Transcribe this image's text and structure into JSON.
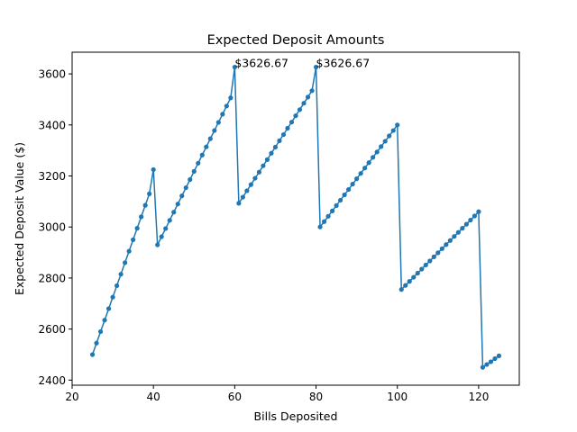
{
  "chart_data": {
    "type": "line",
    "title": "Expected Deposit Amounts",
    "xlabel": "Bills Deposited",
    "ylabel": "Expected Deposit Value ($)",
    "xlim": [
      20,
      130
    ],
    "ylim": [
      2380,
      3685
    ],
    "xticks": [
      20,
      40,
      60,
      80,
      100,
      120
    ],
    "yticks": [
      2400,
      2600,
      2800,
      3000,
      3200,
      3400,
      3600
    ],
    "grid": false,
    "legend": "none",
    "line_color": "#1f77b4",
    "annotations": [
      {
        "x": 60,
        "y": 3626.67,
        "text": "$3626.67"
      },
      {
        "x": 80,
        "y": 3626.67,
        "text": "$3626.67"
      }
    ],
    "series": [
      {
        "x": [
          25,
          26,
          27,
          28,
          29,
          30,
          31,
          32,
          33,
          34,
          35,
          36,
          37,
          38,
          39,
          40,
          41,
          42,
          43,
          44,
          45,
          46,
          47,
          48,
          49,
          50,
          51,
          52,
          53,
          54,
          55,
          56,
          57,
          58,
          59,
          60,
          61,
          62,
          63,
          64,
          65,
          66,
          67,
          68,
          69,
          70,
          71,
          72,
          73,
          74,
          75,
          76,
          77,
          78,
          79,
          80,
          81,
          82,
          83,
          84,
          85,
          86,
          87,
          88,
          89,
          90,
          91,
          92,
          93,
          94,
          95,
          96,
          97,
          98,
          99,
          100,
          101,
          102,
          103,
          104,
          105,
          106,
          107,
          108,
          109,
          110,
          111,
          112,
          113,
          114,
          115,
          116,
          117,
          118,
          119,
          120,
          121,
          122,
          123,
          124,
          125
        ],
        "y": [
          2500,
          2545,
          2590,
          2635,
          2680,
          2725,
          2770,
          2815,
          2860,
          2905,
          2950,
          2995,
          3040,
          3085,
          3130,
          3225,
          2930,
          2962,
          2994,
          3026,
          3058,
          3090,
          3122,
          3154,
          3186,
          3218,
          3250,
          3282,
          3314,
          3346,
          3378,
          3410,
          3442,
          3474,
          3506,
          3626.67,
          3093,
          3117,
          3142,
          3166,
          3191,
          3215,
          3240,
          3264,
          3289,
          3313,
          3338,
          3362,
          3387,
          3411,
          3436,
          3460,
          3485,
          3509,
          3534,
          3626.67,
          3000,
          3021,
          3042,
          3063,
          3084,
          3105,
          3126,
          3147,
          3168,
          3189,
          3210,
          3231,
          3252,
          3273,
          3294,
          3315,
          3336,
          3357,
          3378,
          3400,
          2755,
          2771,
          2787,
          2803,
          2819,
          2835,
          2851,
          2867,
          2883,
          2899,
          2915,
          2931,
          2947,
          2963,
          2979,
          2995,
          3011,
          3027,
          3043,
          3060,
          2450,
          2461,
          2472,
          2484,
          2495
        ]
      }
    ]
  }
}
